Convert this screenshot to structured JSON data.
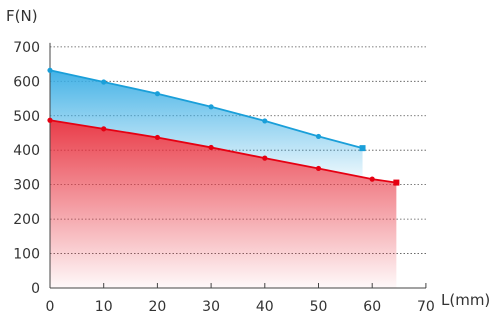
{
  "chart_data": {
    "type": "area",
    "ylabel": "F(N)",
    "xlabel": "L(mm)",
    "xlim": [
      0,
      70
    ],
    "ylim": [
      0,
      700
    ],
    "x_ticks": [
      0,
      10,
      20,
      30,
      40,
      50,
      60,
      70
    ],
    "y_ticks": [
      0,
      100,
      200,
      300,
      400,
      500,
      600,
      700
    ],
    "grid": "horizontal-dotted",
    "legend": "none",
    "series": [
      {
        "color": "#e60012",
        "fill_color": "#e8323f",
        "points": [
          {
            "x": 0,
            "y": 487
          },
          {
            "x": 10,
            "y": 462
          },
          {
            "x": 20,
            "y": 437
          },
          {
            "x": 30,
            "y": 408
          },
          {
            "x": 40,
            "y": 377
          },
          {
            "x": 50,
            "y": 347
          },
          {
            "x": 60,
            "y": 316
          },
          {
            "x": 64.5,
            "y": 306
          }
        ]
      },
      {
        "color": "#1a9fd9",
        "fill_color": "#3aaee5",
        "points": [
          {
            "x": 0,
            "y": 632
          },
          {
            "x": 10,
            "y": 598
          },
          {
            "x": 20,
            "y": 564
          },
          {
            "x": 30,
            "y": 526
          },
          {
            "x": 40,
            "y": 485
          },
          {
            "x": 50,
            "y": 440
          },
          {
            "x": 58.2,
            "y": 406
          }
        ]
      }
    ]
  }
}
